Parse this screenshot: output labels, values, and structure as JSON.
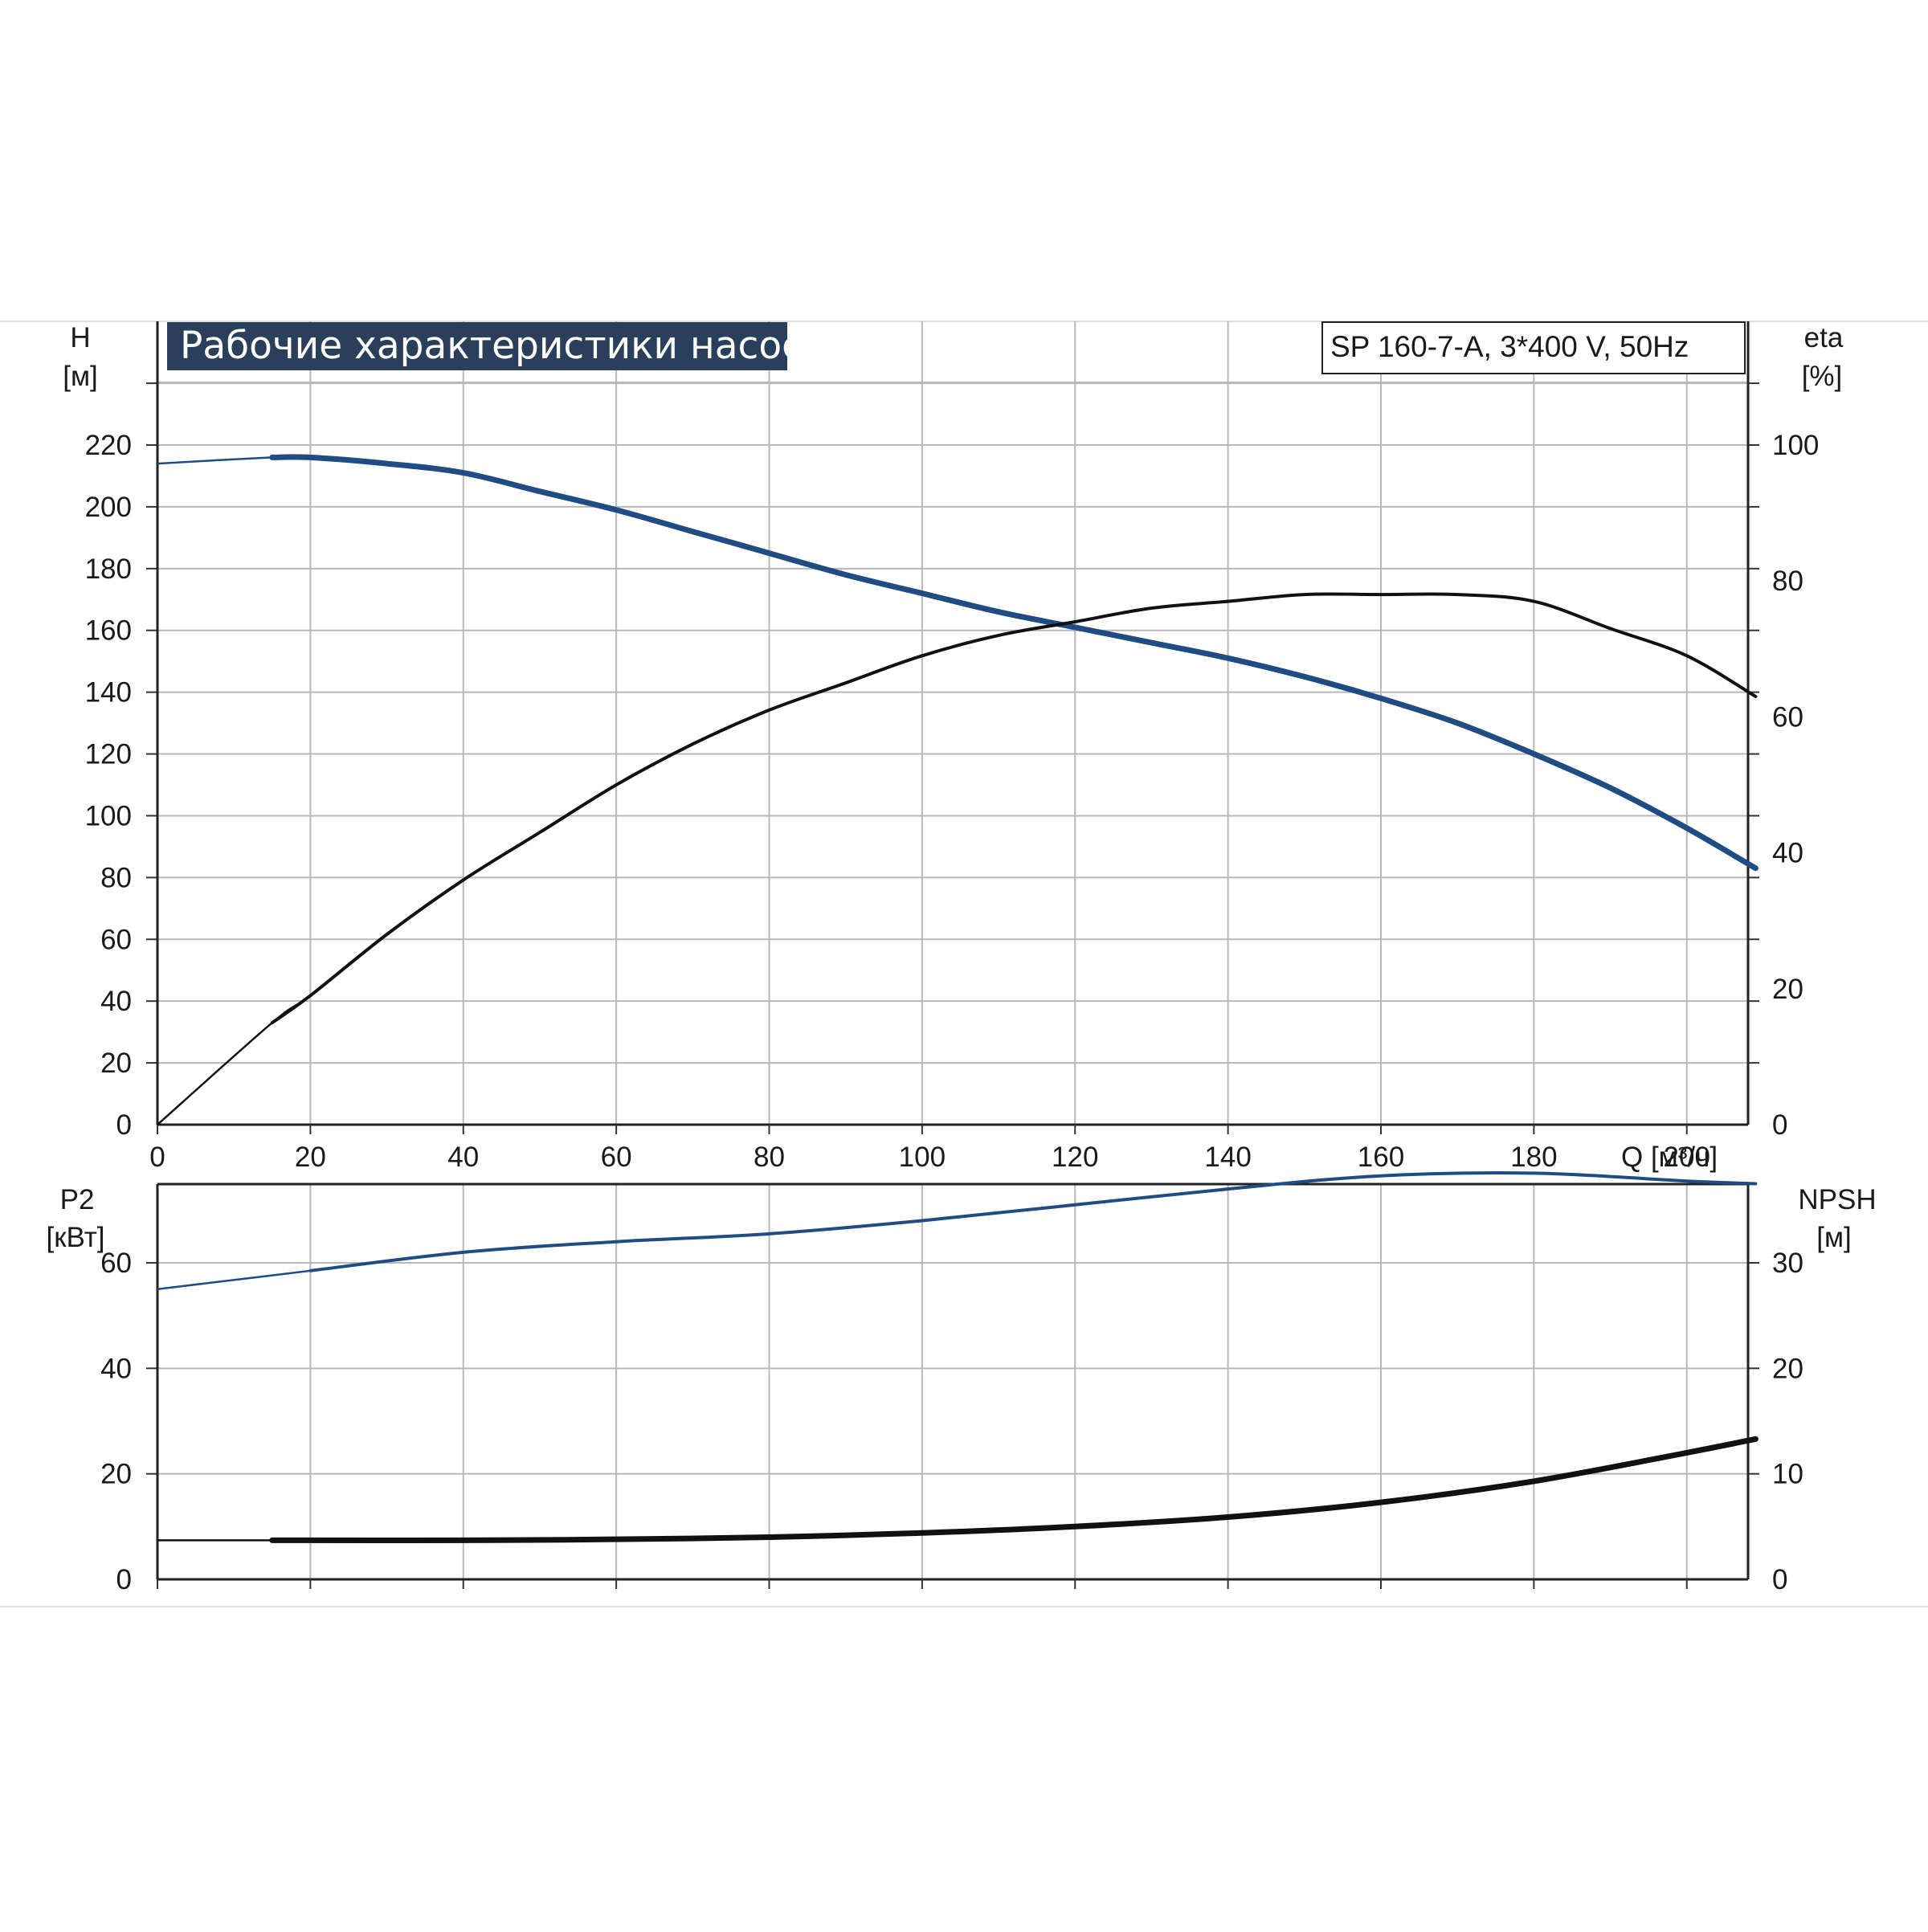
{
  "title": "Рабочие характеристики насоса",
  "model_label": "SP 160-7-A, 3*400 V, 50Hz",
  "colors": {
    "blue": "#1f4c82",
    "black": "#111111",
    "grid": "#b8b8b8",
    "title_bg": "#2a3f5a"
  },
  "chart_data": [
    {
      "type": "line",
      "panel": "upper",
      "grid": true,
      "x_axis": {
        "label": "Q [м³/ч]",
        "ticks": [
          0,
          20,
          40,
          60,
          80,
          100,
          120,
          140,
          160,
          180,
          200
        ],
        "range": [
          0,
          230
        ]
      },
      "y_left": {
        "label": "H",
        "unit": "[м]",
        "ticks": [
          0,
          20,
          40,
          60,
          80,
          100,
          120,
          140,
          160,
          180,
          200,
          220
        ],
        "range": [
          0,
          220
        ]
      },
      "y_right": {
        "label": "eta",
        "unit": "[%]",
        "ticks": [
          0,
          20,
          40,
          60,
          80,
          100
        ],
        "range": [
          0,
          100
        ]
      },
      "series": [
        {
          "axis": "left",
          "color": "blue",
          "points": [
            [
              0,
              214
            ],
            [
              15,
              216
            ],
            [
              20,
              216
            ],
            [
              30,
              214
            ],
            [
              40,
              211
            ],
            [
              50,
              205
            ],
            [
              60,
              199
            ],
            [
              70,
              192
            ],
            [
              80,
              185
            ],
            [
              90,
              178
            ],
            [
              100,
              172
            ],
            [
              110,
              166
            ],
            [
              120,
              161
            ],
            [
              130,
              156
            ],
            [
              140,
              151
            ],
            [
              150,
              145
            ],
            [
              160,
              138
            ],
            [
              170,
              130
            ],
            [
              180,
              120
            ],
            [
              190,
              109
            ],
            [
              200,
              96
            ],
            [
              209,
              83
            ]
          ]
        },
        {
          "axis": "right",
          "color": "black",
          "points": [
            [
              0,
              0
            ],
            [
              15,
              15
            ],
            [
              20,
              19
            ],
            [
              30,
              28
            ],
            [
              40,
              36
            ],
            [
              50,
              43
            ],
            [
              60,
              50
            ],
            [
              70,
              56
            ],
            [
              80,
              61
            ],
            [
              90,
              65
            ],
            [
              100,
              69
            ],
            [
              110,
              72
            ],
            [
              120,
              74
            ],
            [
              130,
              76
            ],
            [
              140,
              77
            ],
            [
              150,
              78
            ],
            [
              160,
              78
            ],
            [
              170,
              78
            ],
            [
              180,
              77
            ],
            [
              190,
              73
            ],
            [
              200,
              69
            ],
            [
              209,
              63
            ]
          ]
        }
      ]
    },
    {
      "type": "line",
      "panel": "lower",
      "grid": true,
      "x_axis": {
        "ticks": [
          0,
          20,
          40,
          60,
          80,
          100,
          120,
          140,
          160,
          180,
          200
        ],
        "range": [
          0,
          230
        ]
      },
      "y_left": {
        "label": "P2",
        "unit": "[кВт]",
        "ticks": [
          0,
          20,
          40,
          60
        ],
        "range": [
          0,
          80
        ]
      },
      "y_right": {
        "label": "NPSH",
        "unit": "[м]",
        "ticks": [
          0,
          10,
          20,
          30
        ],
        "range": [
          0,
          40
        ]
      },
      "series": [
        {
          "axis": "left",
          "color": "blue",
          "points": [
            [
              0,
              55
            ],
            [
              20,
              58.5
            ],
            [
              40,
              62
            ],
            [
              60,
              64
            ],
            [
              80,
              65.5
            ],
            [
              100,
              68
            ],
            [
              120,
              71
            ],
            [
              140,
              74
            ],
            [
              160,
              76.5
            ],
            [
              180,
              77
            ],
            [
              200,
              75.5
            ],
            [
              209,
              75
            ]
          ]
        },
        {
          "axis": "right",
          "color": "black",
          "points": [
            [
              0,
              3.7
            ],
            [
              15,
              3.7
            ],
            [
              40,
              3.7
            ],
            [
              60,
              3.8
            ],
            [
              80,
              4
            ],
            [
              100,
              4.4
            ],
            [
              120,
              5
            ],
            [
              140,
              5.9
            ],
            [
              160,
              7.3
            ],
            [
              180,
              9.3
            ],
            [
              200,
              12
            ],
            [
              209,
              13.3
            ]
          ]
        }
      ]
    }
  ]
}
